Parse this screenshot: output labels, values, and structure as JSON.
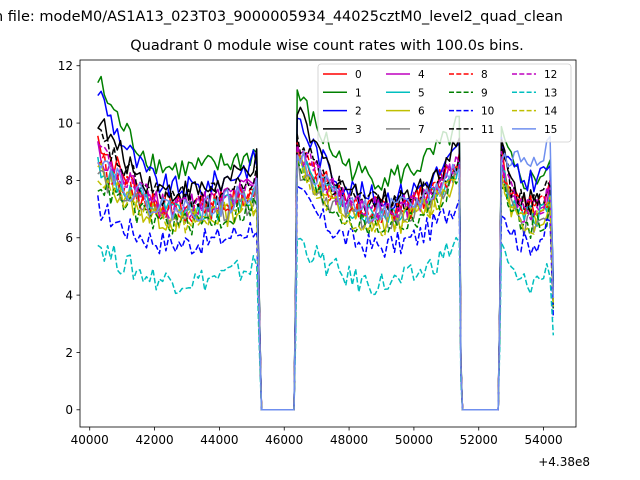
{
  "chart_data": {
    "type": "line",
    "suptitle": "n file: modeM0/AS1A13_023T03_9000005934_44025cztM0_level2_quad_clean",
    "title": "Quadrant 0 module wise count rates with 100.0s bins.",
    "xlabel": "",
    "ylabel": "",
    "x_offset_label": "+4.38e8",
    "xlim": [
      39700,
      55000
    ],
    "ylim": [
      -0.6,
      12.2
    ],
    "xticks": [
      40000,
      42000,
      44000,
      46000,
      48000,
      50000,
      52000,
      54000
    ],
    "yticks": [
      0,
      2,
      4,
      6,
      8,
      10,
      12
    ],
    "legend_position": "top-right",
    "legend_columns": 4,
    "grid": false,
    "gaps": [
      [
        45300,
        46300
      ],
      [
        51500,
        52600
      ]
    ],
    "segment_edges": [
      40250,
      45200,
      46400,
      51400,
      52700,
      54300
    ],
    "series": [
      {
        "name": "0",
        "color": "#ff0000",
        "dash": "solid",
        "levels": [
          9.5,
          7.1,
          7.6,
          9.2,
          7.0,
          7.5,
          9.0,
          7.7,
          4.0
        ]
      },
      {
        "name": "1",
        "color": "#008000",
        "dash": "solid",
        "levels": [
          11.5,
          8.4,
          9.0,
          11.1,
          8.1,
          8.8,
          9.6,
          8.6,
          4.5
        ]
      },
      {
        "name": "2",
        "color": "#0000ff",
        "dash": "solid",
        "levels": [
          11.2,
          7.7,
          8.8,
          10.2,
          7.4,
          7.9,
          9.3,
          8.6,
          4.4
        ]
      },
      {
        "name": "3",
        "color": "#000000",
        "dash": "solid",
        "levels": [
          10.2,
          7.6,
          8.7,
          10.4,
          7.3,
          8.1,
          9.3,
          7.9,
          4.3
        ]
      },
      {
        "name": "4",
        "color": "#bf00bf",
        "dash": "solid",
        "levels": [
          9.0,
          7.2,
          8.0,
          9.4,
          6.9,
          7.4,
          8.6,
          7.5,
          3.9
        ]
      },
      {
        "name": "5",
        "color": "#00bfbf",
        "dash": "solid",
        "levels": [
          8.6,
          6.9,
          7.6,
          9.0,
          6.8,
          7.3,
          8.5,
          7.3,
          3.7
        ]
      },
      {
        "name": "6",
        "color": "#bfbf00",
        "dash": "solid",
        "levels": [
          8.4,
          6.6,
          7.3,
          8.8,
          6.5,
          7.0,
          8.2,
          7.2,
          3.6
        ]
      },
      {
        "name": "7",
        "color": "#808080",
        "dash": "solid",
        "levels": [
          8.3,
          6.8,
          7.4,
          8.6,
          6.6,
          7.1,
          8.1,
          7.1,
          3.6
        ]
      },
      {
        "name": "8",
        "color": "#ff0000",
        "dash": "dashed",
        "levels": [
          8.8,
          7.0,
          7.7,
          9.0,
          6.9,
          7.3,
          8.5,
          7.6,
          3.8
        ]
      },
      {
        "name": "9",
        "color": "#008000",
        "dash": "dashed",
        "levels": [
          8.0,
          6.5,
          7.2,
          8.5,
          6.4,
          6.9,
          8.0,
          7.0,
          3.5
        ]
      },
      {
        "name": "10",
        "color": "#0000ff",
        "dash": "dashed",
        "levels": [
          7.1,
          5.8,
          6.5,
          7.6,
          5.7,
          6.2,
          7.2,
          6.4,
          3.2
        ]
      },
      {
        "name": "11",
        "color": "#000000",
        "dash": "dashed",
        "levels": [
          9.6,
          7.4,
          8.1,
          9.5,
          7.2,
          7.7,
          8.9,
          7.8,
          4.1
        ]
      },
      {
        "name": "12",
        "color": "#bf00bf",
        "dash": "dashed",
        "levels": [
          9.2,
          7.1,
          7.8,
          9.2,
          7.0,
          7.5,
          8.7,
          7.6,
          3.9
        ]
      },
      {
        "name": "13",
        "color": "#00bfbf",
        "dash": "dashed",
        "levels": [
          5.8,
          4.5,
          5.1,
          6.0,
          4.4,
          4.8,
          5.6,
          5.0,
          2.6
        ]
      },
      {
        "name": "14",
        "color": "#bfbf00",
        "dash": "dashed",
        "levels": [
          8.2,
          6.6,
          7.3,
          8.7,
          6.5,
          7.0,
          8.1,
          7.1,
          3.6
        ]
      },
      {
        "name": "15",
        "color": "#6f8fef",
        "dash": "solid",
        "levels": [
          9.0,
          7.0,
          7.7,
          9.1,
          6.9,
          7.4,
          8.6,
          9.4,
          3.9
        ]
      }
    ]
  }
}
